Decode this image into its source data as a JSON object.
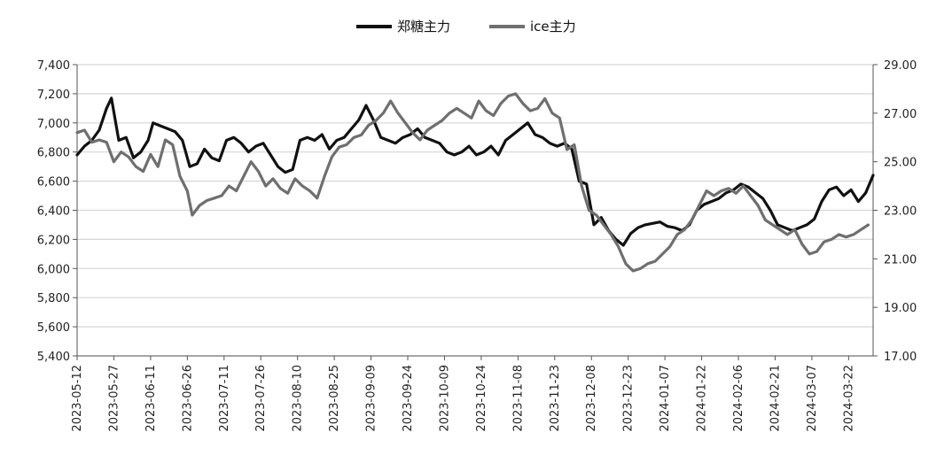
{
  "chart_data": {
    "type": "line",
    "legend": {
      "position": "top-center"
    },
    "grid": {
      "horizontal": true,
      "vertical": false
    },
    "x_axis": {
      "type": "date",
      "range": [
        "2023-05-12",
        "2024-04-01"
      ],
      "tick_labels": [
        "2023-05-12",
        "2023-05-27",
        "2023-06-11",
        "2023-06-26",
        "2023-07-11",
        "2023-07-26",
        "2023-08-10",
        "2023-08-25",
        "2023-09-09",
        "2023-09-24",
        "2023-10-09",
        "2023-10-24",
        "2023-11-08",
        "2023-11-23",
        "2023-12-08",
        "2023-12-23",
        "2024-01-07",
        "2024-01-22",
        "2024-02-06",
        "2024-02-21",
        "2024-03-07",
        "2024-03-22"
      ]
    },
    "y_axis_left": {
      "range": [
        5400,
        7400
      ],
      "ticks": [
        5400,
        5600,
        5800,
        6000,
        6200,
        6400,
        6600,
        6800,
        7000,
        7200,
        7400
      ],
      "tick_labels": [
        "5,400",
        "5,600",
        "5,800",
        "6,000",
        "6,200",
        "6,400",
        "6,600",
        "6,800",
        "7,000",
        "7,200",
        "7,400"
      ]
    },
    "y_axis_right": {
      "range": [
        17,
        29
      ],
      "ticks": [
        17,
        19,
        21,
        23,
        25,
        27,
        29
      ],
      "tick_labels": [
        "17.00",
        "19.00",
        "21.00",
        "23.00",
        "25.00",
        "27.00",
        "29.00"
      ]
    },
    "series": [
      {
        "name": "郑糖主力",
        "axis": "left",
        "color": "#111111",
        "points": [
          [
            "2023-05-12",
            6780
          ],
          [
            "2023-05-15",
            6840
          ],
          [
            "2023-05-18",
            6880
          ],
          [
            "2023-05-21",
            6950
          ],
          [
            "2023-05-24",
            7100
          ],
          [
            "2023-05-26",
            7170
          ],
          [
            "2023-05-29",
            6880
          ],
          [
            "2023-06-01",
            6900
          ],
          [
            "2023-06-04",
            6760
          ],
          [
            "2023-06-07",
            6800
          ],
          [
            "2023-06-10",
            6880
          ],
          [
            "2023-06-12",
            7000
          ],
          [
            "2023-06-15",
            6980
          ],
          [
            "2023-06-18",
            6960
          ],
          [
            "2023-06-21",
            6940
          ],
          [
            "2023-06-24",
            6880
          ],
          [
            "2023-06-27",
            6700
          ],
          [
            "2023-06-30",
            6720
          ],
          [
            "2023-07-03",
            6820
          ],
          [
            "2023-07-06",
            6760
          ],
          [
            "2023-07-09",
            6740
          ],
          [
            "2023-07-12",
            6880
          ],
          [
            "2023-07-15",
            6900
          ],
          [
            "2023-07-18",
            6860
          ],
          [
            "2023-07-21",
            6800
          ],
          [
            "2023-07-24",
            6840
          ],
          [
            "2023-07-27",
            6860
          ],
          [
            "2023-07-30",
            6780
          ],
          [
            "2023-08-02",
            6700
          ],
          [
            "2023-08-05",
            6660
          ],
          [
            "2023-08-08",
            6680
          ],
          [
            "2023-08-11",
            6880
          ],
          [
            "2023-08-14",
            6900
          ],
          [
            "2023-08-17",
            6880
          ],
          [
            "2023-08-20",
            6920
          ],
          [
            "2023-08-23",
            6820
          ],
          [
            "2023-08-26",
            6880
          ],
          [
            "2023-08-29",
            6900
          ],
          [
            "2023-09-01",
            6960
          ],
          [
            "2023-09-04",
            7020
          ],
          [
            "2023-09-07",
            7120
          ],
          [
            "2023-09-10",
            7020
          ],
          [
            "2023-09-13",
            6900
          ],
          [
            "2023-09-16",
            6880
          ],
          [
            "2023-09-19",
            6860
          ],
          [
            "2023-09-22",
            6900
          ],
          [
            "2023-09-25",
            6920
          ],
          [
            "2023-09-28",
            6960
          ],
          [
            "2023-10-01",
            6900
          ],
          [
            "2023-10-04",
            6880
          ],
          [
            "2023-10-07",
            6860
          ],
          [
            "2023-10-10",
            6800
          ],
          [
            "2023-10-13",
            6780
          ],
          [
            "2023-10-16",
            6800
          ],
          [
            "2023-10-19",
            6840
          ],
          [
            "2023-10-22",
            6780
          ],
          [
            "2023-10-25",
            6800
          ],
          [
            "2023-10-28",
            6840
          ],
          [
            "2023-10-31",
            6780
          ],
          [
            "2023-11-03",
            6880
          ],
          [
            "2023-11-06",
            6920
          ],
          [
            "2023-11-09",
            6960
          ],
          [
            "2023-11-12",
            7000
          ],
          [
            "2023-11-15",
            6920
          ],
          [
            "2023-11-18",
            6900
          ],
          [
            "2023-11-21",
            6860
          ],
          [
            "2023-11-24",
            6840
          ],
          [
            "2023-11-27",
            6860
          ],
          [
            "2023-11-30",
            6820
          ],
          [
            "2023-12-03",
            6600
          ],
          [
            "2023-12-06",
            6580
          ],
          [
            "2023-12-09",
            6300
          ],
          [
            "2023-12-12",
            6350
          ],
          [
            "2023-12-15",
            6260
          ],
          [
            "2023-12-18",
            6200
          ],
          [
            "2023-12-21",
            6160
          ],
          [
            "2023-12-24",
            6240
          ],
          [
            "2023-12-27",
            6280
          ],
          [
            "2023-12-30",
            6300
          ],
          [
            "2024-01-02",
            6310
          ],
          [
            "2024-01-05",
            6320
          ],
          [
            "2024-01-08",
            6290
          ],
          [
            "2024-01-11",
            6280
          ],
          [
            "2024-01-14",
            6260
          ],
          [
            "2024-01-17",
            6300
          ],
          [
            "2024-01-20",
            6400
          ],
          [
            "2024-01-23",
            6440
          ],
          [
            "2024-01-26",
            6460
          ],
          [
            "2024-01-29",
            6480
          ],
          [
            "2024-02-01",
            6520
          ],
          [
            "2024-02-04",
            6540
          ],
          [
            "2024-02-07",
            6580
          ],
          [
            "2024-02-10",
            6560
          ],
          [
            "2024-02-13",
            6520
          ],
          [
            "2024-02-16",
            6480
          ],
          [
            "2024-02-19",
            6400
          ],
          [
            "2024-02-22",
            6300
          ],
          [
            "2024-02-25",
            6280
          ],
          [
            "2024-02-28",
            6260
          ],
          [
            "2024-03-02",
            6280
          ],
          [
            "2024-03-05",
            6300
          ],
          [
            "2024-03-08",
            6340
          ],
          [
            "2024-03-11",
            6460
          ],
          [
            "2024-03-14",
            6540
          ],
          [
            "2024-03-17",
            6560
          ],
          [
            "2024-03-20",
            6500
          ],
          [
            "2024-03-23",
            6540
          ],
          [
            "2024-03-26",
            6460
          ],
          [
            "2024-03-29",
            6520
          ],
          [
            "2024-04-01",
            6640
          ]
        ]
      },
      {
        "name": "ice主力",
        "axis": "right",
        "color": "#6f6f6f",
        "points": [
          [
            "2023-05-12",
            26.2
          ],
          [
            "2023-05-15",
            26.3
          ],
          [
            "2023-05-18",
            25.8
          ],
          [
            "2023-05-21",
            25.9
          ],
          [
            "2023-05-24",
            25.8
          ],
          [
            "2023-05-27",
            25.0
          ],
          [
            "2023-05-30",
            25.4
          ],
          [
            "2023-06-02",
            25.2
          ],
          [
            "2023-06-05",
            24.8
          ],
          [
            "2023-06-08",
            24.6
          ],
          [
            "2023-06-11",
            25.3
          ],
          [
            "2023-06-14",
            24.8
          ],
          [
            "2023-06-17",
            25.9
          ],
          [
            "2023-06-20",
            25.7
          ],
          [
            "2023-06-23",
            24.4
          ],
          [
            "2023-06-26",
            23.8
          ],
          [
            "2023-06-28",
            22.8
          ],
          [
            "2023-07-01",
            23.2
          ],
          [
            "2023-07-04",
            23.4
          ],
          [
            "2023-07-07",
            23.5
          ],
          [
            "2023-07-10",
            23.6
          ],
          [
            "2023-07-13",
            24.0
          ],
          [
            "2023-07-16",
            23.8
          ],
          [
            "2023-07-19",
            24.4
          ],
          [
            "2023-07-22",
            25.0
          ],
          [
            "2023-07-25",
            24.6
          ],
          [
            "2023-07-28",
            24.0
          ],
          [
            "2023-07-31",
            24.3
          ],
          [
            "2023-08-03",
            23.9
          ],
          [
            "2023-08-06",
            23.7
          ],
          [
            "2023-08-09",
            24.3
          ],
          [
            "2023-08-12",
            24.0
          ],
          [
            "2023-08-15",
            23.8
          ],
          [
            "2023-08-18",
            23.5
          ],
          [
            "2023-08-21",
            24.4
          ],
          [
            "2023-08-24",
            25.2
          ],
          [
            "2023-08-27",
            25.6
          ],
          [
            "2023-08-30",
            25.7
          ],
          [
            "2023-09-02",
            26.0
          ],
          [
            "2023-09-05",
            26.1
          ],
          [
            "2023-09-08",
            26.5
          ],
          [
            "2023-09-11",
            26.7
          ],
          [
            "2023-09-14",
            27.0
          ],
          [
            "2023-09-17",
            27.5
          ],
          [
            "2023-09-20",
            27.0
          ],
          [
            "2023-09-23",
            26.6
          ],
          [
            "2023-09-26",
            26.2
          ],
          [
            "2023-09-29",
            25.9
          ],
          [
            "2023-10-02",
            26.3
          ],
          [
            "2023-10-05",
            26.5
          ],
          [
            "2023-10-08",
            26.7
          ],
          [
            "2023-10-11",
            27.0
          ],
          [
            "2023-10-14",
            27.2
          ],
          [
            "2023-10-17",
            27.0
          ],
          [
            "2023-10-20",
            26.8
          ],
          [
            "2023-10-23",
            27.5
          ],
          [
            "2023-10-26",
            27.1
          ],
          [
            "2023-10-29",
            26.9
          ],
          [
            "2023-11-01",
            27.4
          ],
          [
            "2023-11-04",
            27.7
          ],
          [
            "2023-11-07",
            27.8
          ],
          [
            "2023-11-10",
            27.4
          ],
          [
            "2023-11-13",
            27.1
          ],
          [
            "2023-11-16",
            27.2
          ],
          [
            "2023-11-19",
            27.6
          ],
          [
            "2023-11-22",
            27.0
          ],
          [
            "2023-11-25",
            26.8
          ],
          [
            "2023-11-28",
            25.5
          ],
          [
            "2023-12-01",
            25.7
          ],
          [
            "2023-12-04",
            24.0
          ],
          [
            "2023-12-07",
            23.0
          ],
          [
            "2023-12-10",
            22.8
          ],
          [
            "2023-12-13",
            22.4
          ],
          [
            "2023-12-16",
            22.0
          ],
          [
            "2023-12-19",
            21.5
          ],
          [
            "2023-12-22",
            20.8
          ],
          [
            "2023-12-25",
            20.5
          ],
          [
            "2023-12-28",
            20.6
          ],
          [
            "2023-12-31",
            20.8
          ],
          [
            "2024-01-03",
            20.9
          ],
          [
            "2024-01-06",
            21.2
          ],
          [
            "2024-01-09",
            21.5
          ],
          [
            "2024-01-12",
            22.0
          ],
          [
            "2024-01-15",
            22.2
          ],
          [
            "2024-01-18",
            22.6
          ],
          [
            "2024-01-21",
            23.2
          ],
          [
            "2024-01-24",
            23.8
          ],
          [
            "2024-01-27",
            23.6
          ],
          [
            "2024-01-30",
            23.8
          ],
          [
            "2024-02-02",
            23.9
          ],
          [
            "2024-02-05",
            23.7
          ],
          [
            "2024-02-08",
            24.0
          ],
          [
            "2024-02-11",
            23.6
          ],
          [
            "2024-02-14",
            23.2
          ],
          [
            "2024-02-17",
            22.6
          ],
          [
            "2024-02-20",
            22.4
          ],
          [
            "2024-02-23",
            22.2
          ],
          [
            "2024-02-26",
            22.0
          ],
          [
            "2024-02-29",
            22.2
          ],
          [
            "2024-03-03",
            21.6
          ],
          [
            "2024-03-06",
            21.2
          ],
          [
            "2024-03-09",
            21.3
          ],
          [
            "2024-03-12",
            21.7
          ],
          [
            "2024-03-15",
            21.8
          ],
          [
            "2024-03-18",
            22.0
          ],
          [
            "2024-03-21",
            21.9
          ],
          [
            "2024-03-24",
            22.0
          ],
          [
            "2024-03-27",
            22.2
          ],
          [
            "2024-03-30",
            22.4
          ]
        ]
      }
    ]
  }
}
